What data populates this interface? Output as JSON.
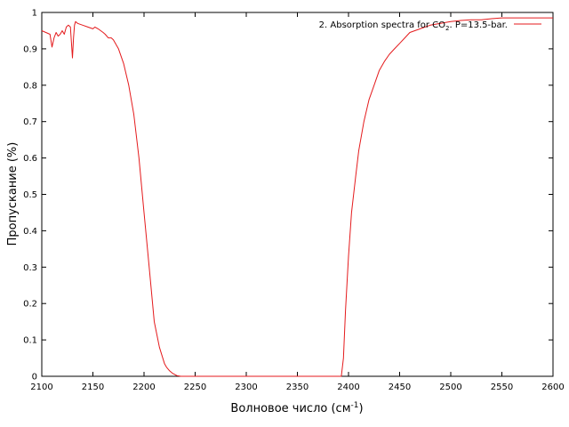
{
  "chart_data": {
    "type": "line",
    "title": "",
    "xlabel": "Волновое число (см",
    "xlabel_sup": "-1",
    "xlabel_end": ")",
    "ylabel": "Пропускание (%)",
    "xlim": [
      2100,
      2600
    ],
    "ylim": [
      0,
      1
    ],
    "x_ticks": [
      "2100",
      "2150",
      "2200",
      "2250",
      "2300",
      "2350",
      "2400",
      "2450",
      "2500",
      "2550",
      "2600"
    ],
    "y_ticks": [
      "0",
      "0.1",
      "0.2",
      "0.3",
      "0.4",
      "0.5",
      "0.6",
      "0.7",
      "0.8",
      "0.9",
      "1"
    ],
    "grid": false,
    "legend_position": "top-right",
    "colors": {
      "series": "#e41a1c",
      "axis": "#000000"
    },
    "series": [
      {
        "name": "2. Absorption spectra for CO",
        "name_sub": "2",
        "name_end": ". P=13.5-bar.",
        "x": [
          2100,
          2104,
          2108,
          2110,
          2112,
          2114,
          2116,
          2118,
          2120,
          2122,
          2124,
          2126,
          2128,
          2130,
          2131,
          2132,
          2133,
          2135,
          2140,
          2145,
          2150,
          2152,
          2155,
          2160,
          2162,
          2165,
          2168,
          2170,
          2175,
          2180,
          2185,
          2190,
          2195,
          2200,
          2205,
          2210,
          2215,
          2220,
          2222,
          2225,
          2228,
          2232,
          2236,
          2240,
          2300,
          2350,
          2393,
          2395,
          2397,
          2400,
          2403,
          2407,
          2410,
          2415,
          2420,
          2425,
          2430,
          2435,
          2440,
          2445,
          2450,
          2455,
          2460,
          2470,
          2480,
          2490,
          2500,
          2510,
          2520,
          2530,
          2540,
          2550,
          2560,
          2580,
          2600
        ],
        "y": [
          0.95,
          0.945,
          0.94,
          0.905,
          0.93,
          0.945,
          0.935,
          0.94,
          0.95,
          0.94,
          0.96,
          0.965,
          0.96,
          0.875,
          0.93,
          0.965,
          0.975,
          0.97,
          0.965,
          0.96,
          0.955,
          0.96,
          0.955,
          0.945,
          0.94,
          0.93,
          0.93,
          0.925,
          0.9,
          0.86,
          0.8,
          0.72,
          0.6,
          0.45,
          0.3,
          0.15,
          0.08,
          0.035,
          0.025,
          0.015,
          0.008,
          0.002,
          0.0,
          0.0,
          0.0,
          0.0,
          0.0,
          0.05,
          0.18,
          0.33,
          0.45,
          0.55,
          0.62,
          0.7,
          0.76,
          0.8,
          0.84,
          0.865,
          0.885,
          0.9,
          0.915,
          0.93,
          0.945,
          0.955,
          0.965,
          0.97,
          0.975,
          0.978,
          0.98,
          0.98,
          0.983,
          0.985,
          0.985,
          0.985,
          0.985
        ]
      }
    ]
  }
}
